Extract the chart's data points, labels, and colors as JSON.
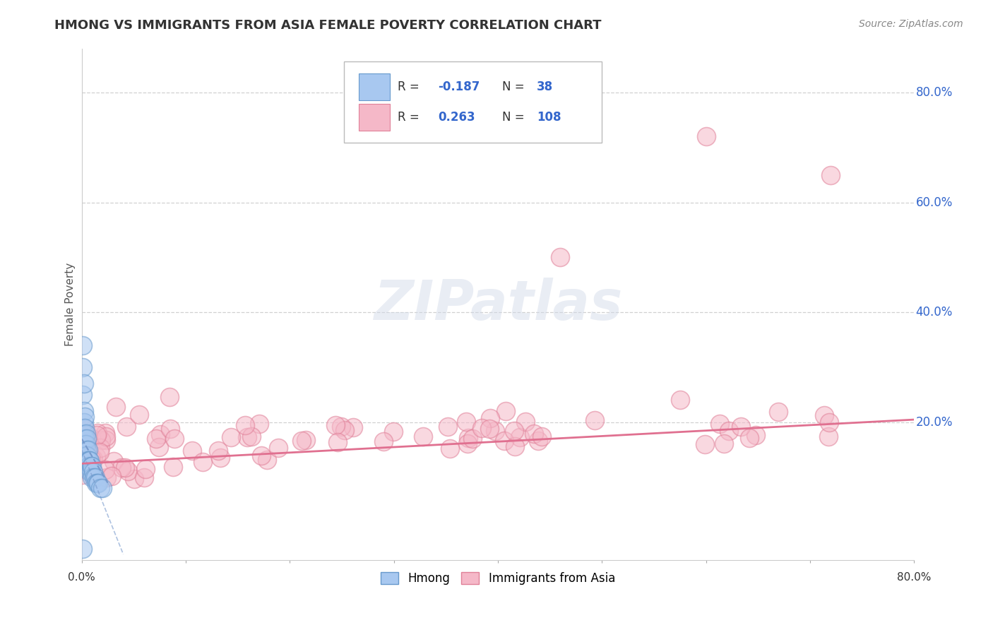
{
  "title": "HMONG VS IMMIGRANTS FROM ASIA FEMALE POVERTY CORRELATION CHART",
  "source": "Source: ZipAtlas.com",
  "ylabel": "Female Poverty",
  "legend_hmong_R": -0.187,
  "legend_hmong_N": 38,
  "legend_asia_R": 0.263,
  "legend_asia_N": 108,
  "background_color": "#ffffff",
  "plot_bg_color": "#ffffff",
  "grid_color": "#cccccc",
  "hmong_color": "#a8c8f0",
  "hmong_edge_color": "#6699cc",
  "asia_color": "#f5b8c8",
  "asia_edge_color": "#e08098",
  "hmong_line_color": "#7799cc",
  "asia_line_color": "#e07090",
  "title_color": "#333333",
  "source_color": "#888888",
  "legend_R_color": "#3366cc",
  "xmin": 0.0,
  "xmax": 0.8,
  "ymin": -0.05,
  "ymax": 0.88,
  "yticks": [
    0.2,
    0.4,
    0.6,
    0.8
  ],
  "ytick_labels": [
    "20.0%",
    "40.0%",
    "60.0%",
    "80.0%"
  ]
}
